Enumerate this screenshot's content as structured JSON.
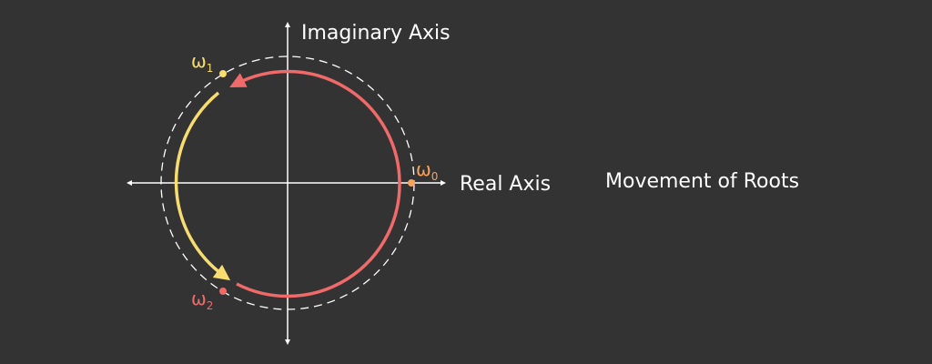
{
  "title": "Movement of Roots",
  "axes": {
    "imaginary_label": "Imaginary Axis",
    "real_label": "Real Axis"
  },
  "roots": [
    {
      "symbol": "ω",
      "subscript": "0",
      "color": "#F4A460"
    },
    {
      "symbol": "ω",
      "subscript": "1",
      "color": "#F7DC6F"
    },
    {
      "symbol": "ω",
      "subscript": "2",
      "color": "#F06A6A"
    }
  ],
  "colors": {
    "background": "#333333",
    "axis": "#ffffff",
    "dashed_circle": "#ffffff",
    "red_arc": "#F06A6A",
    "yellow_arc": "#F7DC6F"
  }
}
